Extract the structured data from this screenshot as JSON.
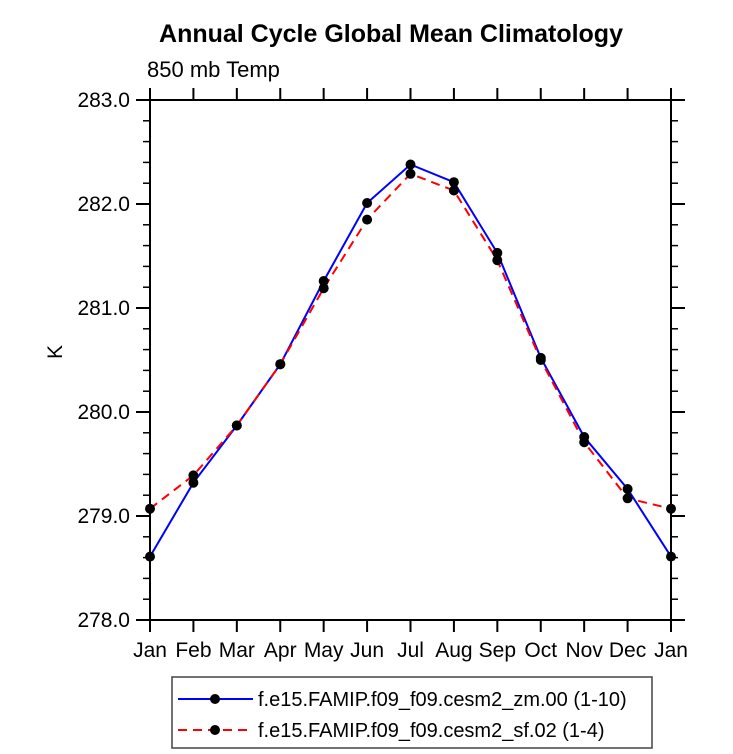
{
  "title": "Annual Cycle Global Mean Climatology",
  "subtitle": "850 mb Temp",
  "ylabel": "K",
  "colors": {
    "series1": "#0000ff",
    "series2": "#ff0000",
    "marker": "#000000",
    "axis": "#000000",
    "legend_border": "#444444"
  },
  "chart_data": {
    "type": "line",
    "categories": [
      "Jan",
      "Feb",
      "Mar",
      "Apr",
      "May",
      "Jun",
      "Jul",
      "Aug",
      "Sep",
      "Oct",
      "Nov",
      "Dec",
      "Jan"
    ],
    "series": [
      {
        "name": "f.e15.FAMIP.f09_f09.cesm2_zm.00 (1-10)",
        "color": "#0000ff",
        "line_style": "solid",
        "marker": "filled-circle",
        "marker_color": "#000000",
        "values": [
          278.61,
          279.32,
          279.87,
          280.46,
          281.26,
          282.01,
          282.38,
          282.21,
          281.53,
          280.52,
          279.76,
          279.26,
          278.61
        ]
      },
      {
        "name": "f.e15.FAMIP.f09_f09.cesm2_sf.02 (1-4)",
        "color": "#ff0000",
        "line_style": "dashed",
        "marker": "filled-circle",
        "marker_color": "#000000",
        "values": [
          279.07,
          279.39,
          279.87,
          280.46,
          281.19,
          281.85,
          282.29,
          282.13,
          281.46,
          280.5,
          279.71,
          279.17,
          279.07
        ]
      }
    ],
    "title": "Annual Cycle Global Mean Climatology",
    "subtitle": "850 mb Temp",
    "xlabel": "",
    "ylabel": "K",
    "ylim": [
      278.0,
      283.0
    ],
    "ytick_major_step": 1.0,
    "ytick_minor_step": 0.2,
    "ytick_labels": [
      "278.0",
      "279.0",
      "280.0",
      "281.0",
      "282.0",
      "283.0"
    ],
    "grid": false,
    "frame": "box-with-outward-ticks",
    "legend_position": "bottom"
  }
}
